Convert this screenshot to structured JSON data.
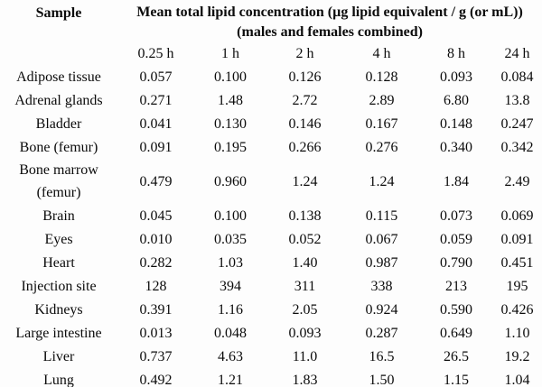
{
  "page": {
    "background": "#fdfdfd",
    "text_color": "#0b0b0b"
  },
  "table": {
    "sample_header": "Sample",
    "main_header_line1": "Mean total lipid concentration (µg lipid equivalent / g (or mL))",
    "main_header_line2": "(males and females combined)",
    "time_headers": [
      "0.25 h",
      "1 h",
      "2 h",
      "4 h",
      "8 h",
      "24 h"
    ],
    "rows": [
      {
        "label": "Adipose tissue",
        "values": [
          "0.057",
          "0.100",
          "0.126",
          "0.128",
          "0.093",
          "0.084"
        ]
      },
      {
        "label": "Adrenal glands",
        "values": [
          "0.271",
          "1.48",
          "2.72",
          "2.89",
          "6.80",
          "13.8"
        ]
      },
      {
        "label": "Bladder",
        "values": [
          "0.041",
          "0.130",
          "0.146",
          "0.167",
          "0.148",
          "0.247"
        ]
      },
      {
        "label": "Bone (femur)",
        "values": [
          "0.091",
          "0.195",
          "0.266",
          "0.276",
          "0.340",
          "0.342"
        ]
      },
      {
        "label": "Bone marrow (femur)",
        "values": [
          "0.479",
          "0.960",
          "1.24",
          "1.24",
          "1.84",
          "2.49"
        ]
      },
      {
        "label": "Brain",
        "values": [
          "0.045",
          "0.100",
          "0.138",
          "0.115",
          "0.073",
          "0.069"
        ]
      },
      {
        "label": "Eyes",
        "values": [
          "0.010",
          "0.035",
          "0.052",
          "0.067",
          "0.059",
          "0.091"
        ]
      },
      {
        "label": "Heart",
        "values": [
          "0.282",
          "1.03",
          "1.40",
          "0.987",
          "0.790",
          "0.451"
        ]
      },
      {
        "label": "Injection site",
        "values": [
          "128",
          "394",
          "311",
          "338",
          "213",
          "195"
        ]
      },
      {
        "label": "Kidneys",
        "values": [
          "0.391",
          "1.16",
          "2.05",
          "0.924",
          "0.590",
          "0.426"
        ]
      },
      {
        "label": "Large intestine",
        "values": [
          "0.013",
          "0.048",
          "0.093",
          "0.287",
          "0.649",
          "1.10"
        ]
      },
      {
        "label": "Liver",
        "values": [
          "0.737",
          "4.63",
          "11.0",
          "16.5",
          "26.5",
          "19.2"
        ]
      },
      {
        "label": "Lung",
        "values": [
          "0.492",
          "1.21",
          "1.83",
          "1.50",
          "1.15",
          "1.04"
        ]
      }
    ]
  }
}
